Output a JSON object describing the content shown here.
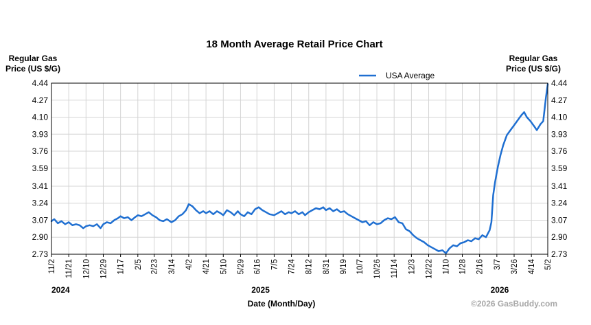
{
  "chart_data": {
    "type": "line",
    "title": "18 Month Average Retail Price Chart",
    "ylabel_left": [
      "Regular Gas",
      "Price (US $/G)"
    ],
    "ylabel_right": [
      "Regular Gas",
      "Price (US $/G)"
    ],
    "xlabel": "Date (Month/Day)",
    "copyright": "©2026 GasBuddy.com",
    "ylim": [
      2.73,
      4.44
    ],
    "yticks": [
      "2.73",
      "2.90",
      "3.07",
      "3.24",
      "3.41",
      "3.59",
      "3.76",
      "3.93",
      "4.10",
      "4.27",
      "4.44"
    ],
    "xlim": [
      "2024-11-02",
      "2026-05-02"
    ],
    "xticks": [
      {
        "label": "11/2",
        "date": "2024-11-02"
      },
      {
        "label": "11/21",
        "date": "2024-11-21"
      },
      {
        "label": "12/10",
        "date": "2024-12-10"
      },
      {
        "label": "12/29",
        "date": "2024-12-29"
      },
      {
        "label": "1/17",
        "date": "2025-01-17"
      },
      {
        "label": "2/5",
        "date": "2025-02-05"
      },
      {
        "label": "2/23",
        "date": "2025-02-23"
      },
      {
        "label": "3/14",
        "date": "2025-03-14"
      },
      {
        "label": "4/2",
        "date": "2025-04-02"
      },
      {
        "label": "4/21",
        "date": "2025-04-21"
      },
      {
        "label": "5/10",
        "date": "2025-05-10"
      },
      {
        "label": "5/29",
        "date": "2025-05-29"
      },
      {
        "label": "6/16",
        "date": "2025-06-16"
      },
      {
        "label": "7/5",
        "date": "2025-07-05"
      },
      {
        "label": "7/24",
        "date": "2025-07-24"
      },
      {
        "label": "8/12",
        "date": "2025-08-12"
      },
      {
        "label": "8/31",
        "date": "2025-08-31"
      },
      {
        "label": "9/19",
        "date": "2025-09-19"
      },
      {
        "label": "10/7",
        "date": "2025-10-07"
      },
      {
        "label": "10/26",
        "date": "2025-10-26"
      },
      {
        "label": "11/14",
        "date": "2025-11-14"
      },
      {
        "label": "12/3",
        "date": "2025-12-03"
      },
      {
        "label": "12/22",
        "date": "2025-12-22"
      },
      {
        "label": "1/10",
        "date": "2026-01-10"
      },
      {
        "label": "1/28",
        "date": "2026-01-28"
      },
      {
        "label": "2/16",
        "date": "2026-02-16"
      },
      {
        "label": "3/7",
        "date": "2026-03-07"
      },
      {
        "label": "3/26",
        "date": "2026-03-26"
      },
      {
        "label": "4/14",
        "date": "2026-04-14"
      },
      {
        "label": "5/2",
        "date": "2026-05-02"
      }
    ],
    "year_labels": [
      {
        "label": "2024",
        "date": "2024-11-02"
      },
      {
        "label": "2025",
        "date": "2025-06-20"
      },
      {
        "label": "2026",
        "date": "2026-02-28"
      }
    ],
    "grid": true,
    "legend_position": "top-right",
    "series": [
      {
        "name": "USA Average",
        "color": "#1f6fd1",
        "points": [
          [
            "2024-11-02",
            3.06
          ],
          [
            "2024-11-05",
            3.08
          ],
          [
            "2024-11-09",
            3.04
          ],
          [
            "2024-11-13",
            3.06
          ],
          [
            "2024-11-17",
            3.03
          ],
          [
            "2024-11-21",
            3.05
          ],
          [
            "2024-11-25",
            3.02
          ],
          [
            "2024-11-29",
            3.03
          ],
          [
            "2024-12-03",
            3.02
          ],
          [
            "2024-12-07",
            2.99
          ],
          [
            "2024-12-10",
            3.01
          ],
          [
            "2024-12-14",
            3.02
          ],
          [
            "2024-12-18",
            3.01
          ],
          [
            "2024-12-22",
            3.03
          ],
          [
            "2024-12-26",
            2.99
          ],
          [
            "2024-12-29",
            3.03
          ],
          [
            "2025-01-02",
            3.05
          ],
          [
            "2025-01-06",
            3.04
          ],
          [
            "2025-01-10",
            3.07
          ],
          [
            "2025-01-14",
            3.09
          ],
          [
            "2025-01-17",
            3.11
          ],
          [
            "2025-01-21",
            3.09
          ],
          [
            "2025-01-25",
            3.1
          ],
          [
            "2025-01-29",
            3.07
          ],
          [
            "2025-02-02",
            3.1
          ],
          [
            "2025-02-05",
            3.12
          ],
          [
            "2025-02-09",
            3.11
          ],
          [
            "2025-02-13",
            3.13
          ],
          [
            "2025-02-17",
            3.15
          ],
          [
            "2025-02-21",
            3.12
          ],
          [
            "2025-02-25",
            3.1
          ],
          [
            "2025-03-01",
            3.07
          ],
          [
            "2025-03-05",
            3.06
          ],
          [
            "2025-03-09",
            3.08
          ],
          [
            "2025-03-14",
            3.05
          ],
          [
            "2025-03-18",
            3.07
          ],
          [
            "2025-03-22",
            3.11
          ],
          [
            "2025-03-26",
            3.13
          ],
          [
            "2025-03-30",
            3.17
          ],
          [
            "2025-04-02",
            3.23
          ],
          [
            "2025-04-06",
            3.21
          ],
          [
            "2025-04-10",
            3.17
          ],
          [
            "2025-04-14",
            3.14
          ],
          [
            "2025-04-18",
            3.16
          ],
          [
            "2025-04-21",
            3.14
          ],
          [
            "2025-04-25",
            3.16
          ],
          [
            "2025-04-29",
            3.13
          ],
          [
            "2025-05-03",
            3.16
          ],
          [
            "2025-05-07",
            3.14
          ],
          [
            "2025-05-10",
            3.12
          ],
          [
            "2025-05-14",
            3.17
          ],
          [
            "2025-05-18",
            3.15
          ],
          [
            "2025-05-22",
            3.12
          ],
          [
            "2025-05-26",
            3.16
          ],
          [
            "2025-05-29",
            3.13
          ],
          [
            "2025-06-02",
            3.11
          ],
          [
            "2025-06-06",
            3.15
          ],
          [
            "2025-06-10",
            3.13
          ],
          [
            "2025-06-14",
            3.18
          ],
          [
            "2025-06-18",
            3.2
          ],
          [
            "2025-06-22",
            3.17
          ],
          [
            "2025-06-26",
            3.15
          ],
          [
            "2025-06-30",
            3.13
          ],
          [
            "2025-07-05",
            3.12
          ],
          [
            "2025-07-09",
            3.14
          ],
          [
            "2025-07-13",
            3.16
          ],
          [
            "2025-07-17",
            3.13
          ],
          [
            "2025-07-21",
            3.15
          ],
          [
            "2025-07-24",
            3.14
          ],
          [
            "2025-07-28",
            3.16
          ],
          [
            "2025-08-01",
            3.13
          ],
          [
            "2025-08-05",
            3.15
          ],
          [
            "2025-08-08",
            3.12
          ],
          [
            "2025-08-12",
            3.15
          ],
          [
            "2025-08-16",
            3.17
          ],
          [
            "2025-08-20",
            3.19
          ],
          [
            "2025-08-24",
            3.18
          ],
          [
            "2025-08-28",
            3.2
          ],
          [
            "2025-08-31",
            3.17
          ],
          [
            "2025-09-04",
            3.19
          ],
          [
            "2025-09-08",
            3.16
          ],
          [
            "2025-09-12",
            3.18
          ],
          [
            "2025-09-16",
            3.15
          ],
          [
            "2025-09-20",
            3.16
          ],
          [
            "2025-09-24",
            3.13
          ],
          [
            "2025-09-28",
            3.11
          ],
          [
            "2025-10-02",
            3.09
          ],
          [
            "2025-10-06",
            3.07
          ],
          [
            "2025-10-10",
            3.05
          ],
          [
            "2025-10-14",
            3.06
          ],
          [
            "2025-10-18",
            3.02
          ],
          [
            "2025-10-22",
            3.05
          ],
          [
            "2025-10-26",
            3.03
          ],
          [
            "2025-10-30",
            3.04
          ],
          [
            "2025-11-03",
            3.07
          ],
          [
            "2025-11-07",
            3.09
          ],
          [
            "2025-11-11",
            3.08
          ],
          [
            "2025-11-15",
            3.1
          ],
          [
            "2025-11-19",
            3.05
          ],
          [
            "2025-11-23",
            3.04
          ],
          [
            "2025-11-27",
            2.98
          ],
          [
            "2025-12-01",
            2.96
          ],
          [
            "2025-12-05",
            2.92
          ],
          [
            "2025-12-09",
            2.89
          ],
          [
            "2025-12-13",
            2.87
          ],
          [
            "2025-12-17",
            2.85
          ],
          [
            "2025-12-21",
            2.82
          ],
          [
            "2025-12-25",
            2.8
          ],
          [
            "2025-12-29",
            2.78
          ],
          [
            "2026-01-02",
            2.76
          ],
          [
            "2026-01-06",
            2.77
          ],
          [
            "2026-01-10",
            2.74
          ],
          [
            "2026-01-14",
            2.79
          ],
          [
            "2026-01-18",
            2.82
          ],
          [
            "2026-01-22",
            2.81
          ],
          [
            "2026-01-26",
            2.84
          ],
          [
            "2026-01-30",
            2.85
          ],
          [
            "2026-02-03",
            2.87
          ],
          [
            "2026-02-07",
            2.86
          ],
          [
            "2026-02-11",
            2.89
          ],
          [
            "2026-02-15",
            2.88
          ],
          [
            "2026-02-19",
            2.92
          ],
          [
            "2026-02-23",
            2.9
          ],
          [
            "2026-02-27",
            2.97
          ],
          [
            "2026-03-01",
            3.05
          ],
          [
            "2026-03-03",
            3.32
          ],
          [
            "2026-03-05",
            3.45
          ],
          [
            "2026-03-08",
            3.6
          ],
          [
            "2026-03-11",
            3.72
          ],
          [
            "2026-03-14",
            3.82
          ],
          [
            "2026-03-18",
            3.92
          ],
          [
            "2026-03-22",
            3.97
          ],
          [
            "2026-03-26",
            4.02
          ],
          [
            "2026-03-30",
            4.07
          ],
          [
            "2026-04-03",
            4.12
          ],
          [
            "2026-04-06",
            4.15
          ],
          [
            "2026-04-09",
            4.1
          ],
          [
            "2026-04-13",
            4.06
          ],
          [
            "2026-04-17",
            4.01
          ],
          [
            "2026-04-20",
            3.97
          ],
          [
            "2026-04-24",
            4.03
          ],
          [
            "2026-04-27",
            4.06
          ],
          [
            "2026-04-30",
            4.3
          ],
          [
            "2026-05-02",
            4.43
          ]
        ]
      }
    ]
  }
}
